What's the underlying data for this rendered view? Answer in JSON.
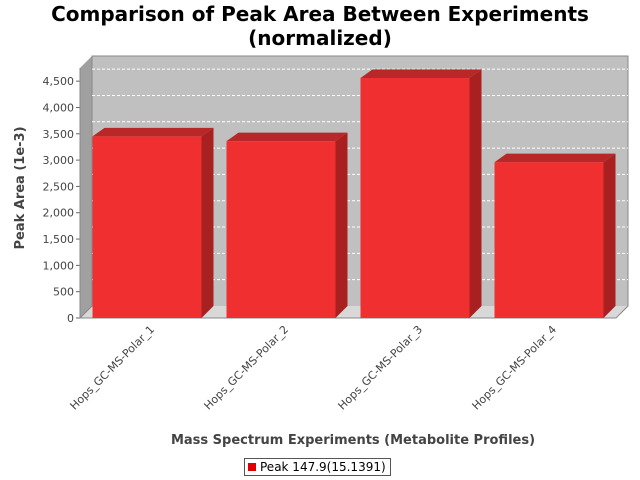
{
  "chart_data": {
    "type": "bar",
    "title_lines": [
      "Comparison of Peak Area Between Experiments",
      "(normalized)"
    ],
    "xlabel": "Mass Spectrum Experiments (Metabolite Profiles)",
    "ylabel": "Peak Area (1e-3)",
    "categories": [
      "Hops_GC-MS-Polar_1",
      "Hops_GC-MS-Polar_2",
      "Hops_GC-MS-Polar_3",
      "Hops_GC-MS-Polar_4"
    ],
    "series": [
      {
        "name": "Peak 147.9(15.1391)",
        "values": [
          3450,
          3360,
          4560,
          2960
        ],
        "color": "#f03030"
      }
    ],
    "ylim": [
      0,
      4750
    ],
    "yticks": [
      0,
      500,
      1000,
      1500,
      2000,
      2500,
      3000,
      3500,
      4000,
      4500
    ],
    "ytick_labels": [
      "0",
      "500",
      "1,000",
      "1,500",
      "2,000",
      "2,500",
      "3,000",
      "3,500",
      "4,000",
      "4,500"
    ],
    "grid": true,
    "three_d": true,
    "legend_position": "bottom"
  }
}
